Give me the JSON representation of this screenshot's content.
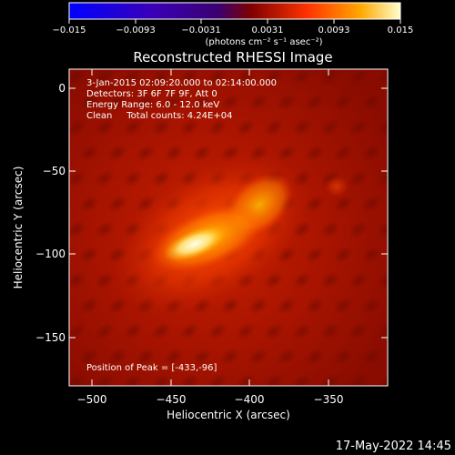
{
  "colorbar": {
    "ticks": [
      "−0.015",
      "−0.0093",
      "−0.0031",
      "0.0031",
      "0.0093",
      "0.015"
    ],
    "units": "(photons cm⁻² s⁻¹ asec⁻²)"
  },
  "plot": {
    "title": "Reconstructed RHESSI Image",
    "info_line1": "3-Jan-2015 02:09:20.000 to 02:14:00.000",
    "info_line2": "Detectors: 3F 6F 7F 9F, Att 0",
    "info_line3": "Energy Range: 6.0 - 12.0 keV",
    "info_line4": "Clean     Total counts: 4.24E+04",
    "peak_text": "Position of Peak = [-433,-96]",
    "xlabel": "Heliocentric X (arcsec)",
    "ylabel": "Heliocentric Y (arcsec)",
    "xticks": [
      "−500",
      "−450",
      "−400",
      "−350"
    ],
    "yticks": [
      "0",
      "−50",
      "−100",
      "−150"
    ]
  },
  "footer": {
    "timestamp": "17-May-2022 14:45"
  }
}
